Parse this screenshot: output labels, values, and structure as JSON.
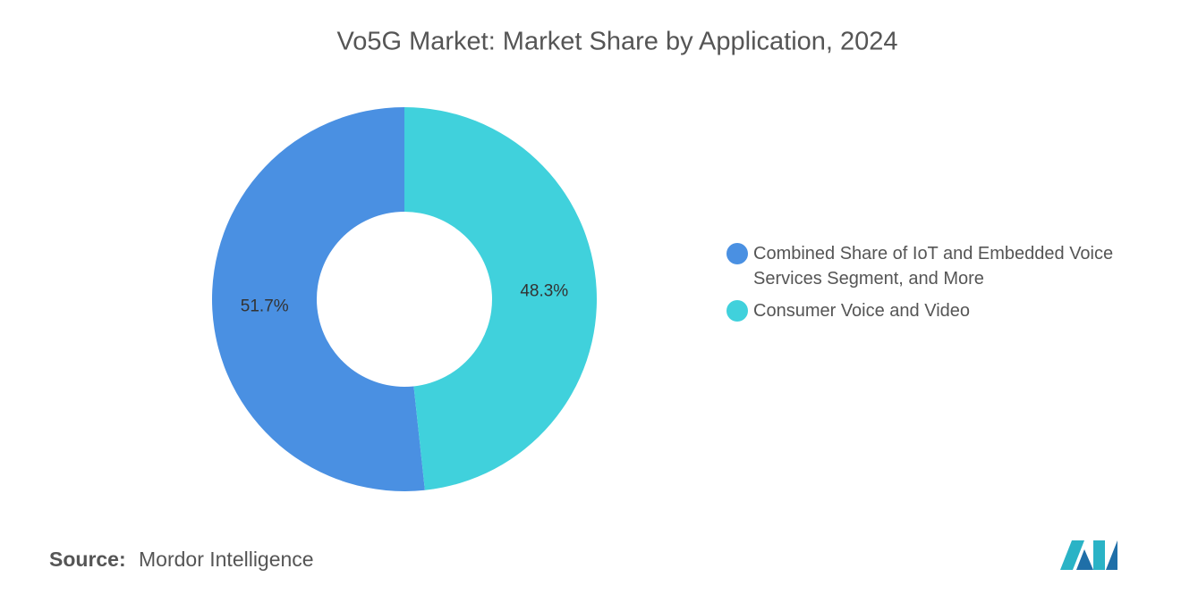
{
  "chart_data": {
    "type": "donut",
    "title": "Vo5G Market: Market Share by Application, 2024",
    "categories": [
      "Combined Share of IoT and Embedded Voice Services Segment, and More",
      "Consumer Voice and Video"
    ],
    "values": [
      51.7,
      48.3
    ],
    "value_labels": [
      "51.7%",
      "48.3%"
    ],
    "colors": [
      "#4a90e2",
      "#40d1dc"
    ],
    "legend_position": "right"
  },
  "source": {
    "label": "Source:",
    "text": "Mordor Intelligence"
  }
}
